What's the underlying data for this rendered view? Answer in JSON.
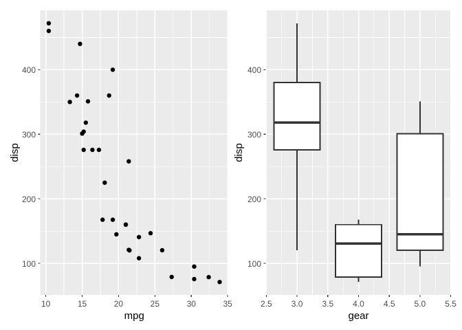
{
  "style": {
    "background": "#FFFFFF",
    "panel_background": "#EBEBEB",
    "grid_color": "#FFFFFF",
    "axis_text_color": "#4D4D4D",
    "axis_title_color": "#000000",
    "tick_mark_color": "#333333",
    "point_color": "#000000",
    "box_stroke": "#333333",
    "box_fill": "#FFFFFF"
  },
  "chart_data": [
    {
      "type": "scatter",
      "title": "",
      "xlabel": "mpg",
      "ylabel": "disp",
      "xlim": [
        9.23,
        35.08
      ],
      "ylim": [
        51.1,
        492.0
      ],
      "grid": true,
      "legend": "none",
      "x_ticks": {
        "values": [
          10,
          15,
          20,
          25,
          30,
          35
        ],
        "labels": [
          "10",
          "15",
          "20",
          "25",
          "30",
          "35"
        ]
      },
      "y_ticks": {
        "values": [
          100,
          200,
          300,
          400
        ],
        "labels": [
          "100",
          "200",
          "300",
          "400"
        ]
      },
      "x_minor": [
        12.5,
        17.5,
        22.5,
        27.5,
        32.5
      ],
      "y_minor": [
        150,
        250,
        350,
        450
      ],
      "points": [
        [
          21.0,
          160
        ],
        [
          21.0,
          160
        ],
        [
          22.8,
          108
        ],
        [
          21.4,
          258
        ],
        [
          18.7,
          360
        ],
        [
          18.1,
          225
        ],
        [
          14.3,
          360
        ],
        [
          24.4,
          146.7
        ],
        [
          22.8,
          140.8
        ],
        [
          19.2,
          167.6
        ],
        [
          17.8,
          167.6
        ],
        [
          16.4,
          275.8
        ],
        [
          17.3,
          275.8
        ],
        [
          15.2,
          275.8
        ],
        [
          10.4,
          472
        ],
        [
          10.4,
          460
        ],
        [
          14.7,
          440
        ],
        [
          32.4,
          78.7
        ],
        [
          30.4,
          75.7
        ],
        [
          33.9,
          71.1
        ],
        [
          21.5,
          120.1
        ],
        [
          15.5,
          318
        ],
        [
          15.2,
          304
        ],
        [
          13.3,
          350
        ],
        [
          19.2,
          400
        ],
        [
          27.3,
          79
        ],
        [
          26.0,
          120.3
        ],
        [
          30.4,
          95.1
        ],
        [
          15.8,
          351
        ],
        [
          19.7,
          145
        ],
        [
          15.0,
          301
        ],
        [
          21.4,
          121
        ]
      ]
    },
    {
      "type": "boxplot",
      "title": "",
      "xlabel": "gear",
      "ylabel": "disp",
      "xlim": [
        2.49,
        5.51
      ],
      "ylim": [
        51.1,
        492.0
      ],
      "grid": true,
      "legend": "none",
      "x_ticks": {
        "values": [
          2.5,
          3.0,
          3.5,
          4.0,
          4.5,
          5.0,
          5.5
        ],
        "labels": [
          "2.5",
          "3.0",
          "3.5",
          "4.0",
          "4.5",
          "5.0",
          "5.5"
        ]
      },
      "y_ticks": {
        "values": [
          100,
          200,
          300,
          400
        ],
        "labels": [
          "100",
          "200",
          "300",
          "400"
        ]
      },
      "x_minor": [
        2.75,
        3.25,
        3.75,
        4.25,
        4.75,
        5.25
      ],
      "y_minor": [
        150,
        250,
        350,
        450
      ],
      "box_width": 0.75,
      "boxes": [
        {
          "x": 3,
          "whisker_low": 120.1,
          "q1": 275.8,
          "median": 318.0,
          "q3": 380.0,
          "whisker_high": 472.0
        },
        {
          "x": 4,
          "whisker_low": 71.1,
          "q1": 78.9,
          "median": 130.9,
          "q3": 160.0,
          "whisker_high": 167.6
        },
        {
          "x": 5,
          "whisker_low": 95.1,
          "q1": 120.3,
          "median": 145.0,
          "q3": 301.0,
          "whisker_high": 351.0
        }
      ]
    }
  ]
}
